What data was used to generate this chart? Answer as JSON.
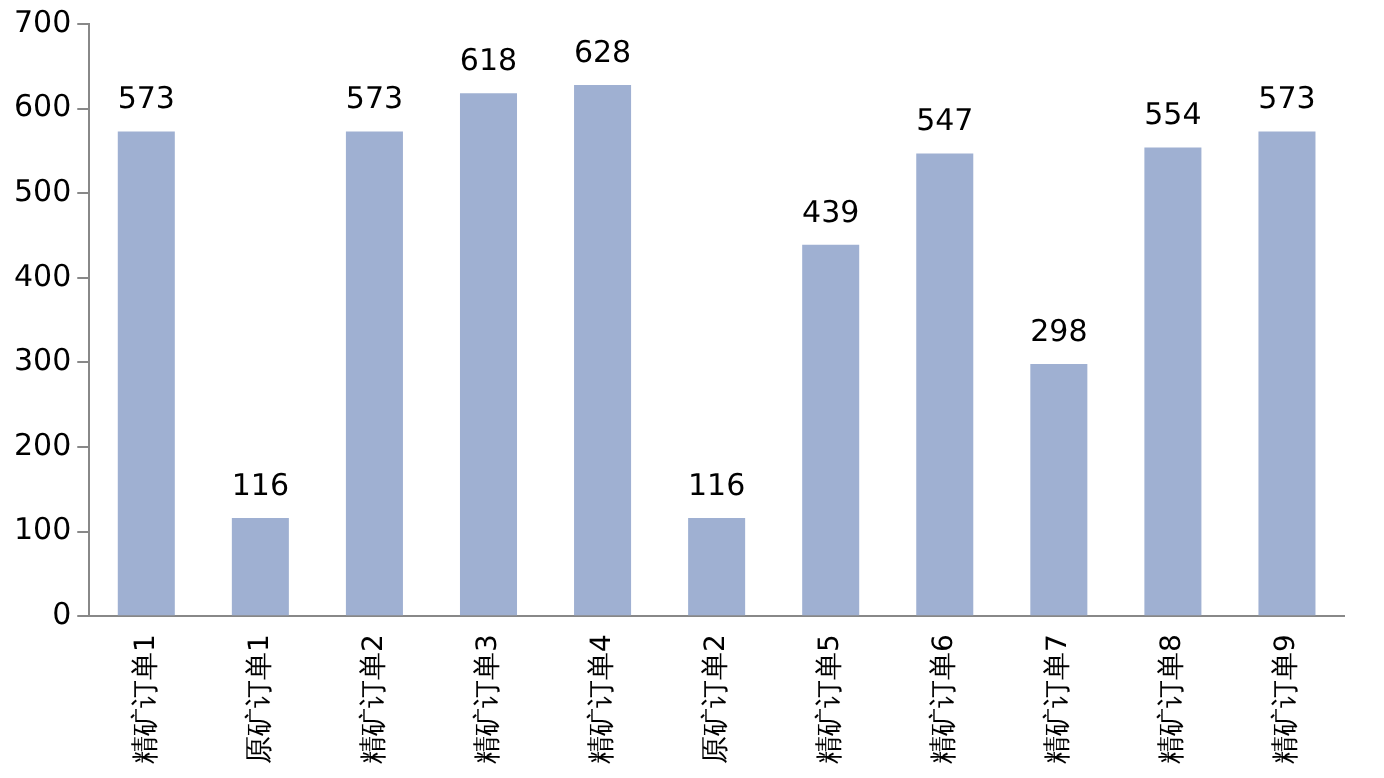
{
  "chart_data": {
    "type": "bar",
    "categories": [
      "精矿订单1",
      "原矿订单1",
      "精矿订单2",
      "精矿订单3",
      "精矿订单4",
      "原矿订单2",
      "精矿订单5",
      "精矿订单6",
      "精矿订单7",
      "精矿订单8",
      "精矿订单9"
    ],
    "values": [
      573,
      116,
      573,
      618,
      628,
      116,
      439,
      547,
      298,
      554,
      573
    ],
    "color": "#9fb0d2",
    "ylim": [
      0,
      700
    ],
    "yticks": [
      0,
      100,
      200,
      300,
      400,
      500,
      600,
      700
    ],
    "data_labels": true,
    "grid": false,
    "legend": false
  }
}
